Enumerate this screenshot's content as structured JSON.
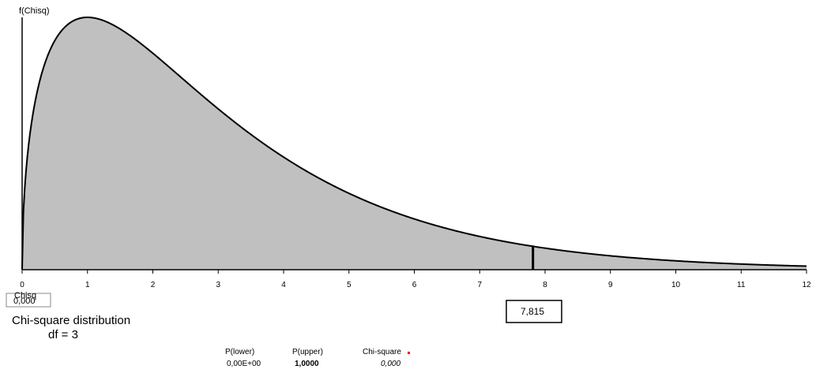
{
  "chart_data": {
    "type": "area",
    "title": "Chi-square distribution",
    "df_label": "df =",
    "df": 3,
    "ylabel": "f(Chisq)",
    "xlabel": "Chisq",
    "xlim": [
      0,
      12
    ],
    "x_ticks": [
      "0",
      "1",
      "2",
      "3",
      "4",
      "5",
      "6",
      "7",
      "8",
      "9",
      "10",
      "11",
      "12"
    ],
    "function": "chi-square pdf",
    "fill_color": "#c0c0c0",
    "line_color": "#000000",
    "critical_value": 7.815,
    "critical_label": "7,815",
    "chisq_input": "0,000"
  },
  "stats": {
    "headers": [
      "P(lower)",
      "P(upper)",
      "Chi-square"
    ],
    "values": [
      "0,00E+00",
      "1,0000",
      "0,000"
    ]
  },
  "colors": {
    "marker": "#ff0000"
  }
}
